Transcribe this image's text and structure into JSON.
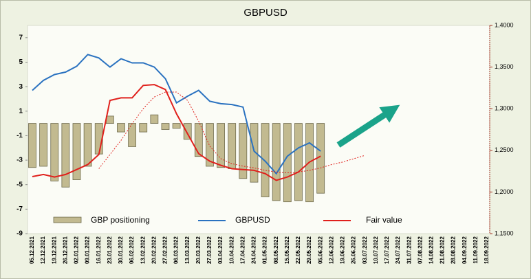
{
  "chart_data": {
    "type": "combo",
    "title": "GBPUSD",
    "categories": [
      "05.12.2021",
      "12.12.2021",
      "19.12.2021",
      "26.12.2021",
      "02.01.2022",
      "09.01.2022",
      "16.01.2022",
      "23.01.2022",
      "30.01.2022",
      "06.02.2022",
      "13.02.2022",
      "20.02.2022",
      "27.02.2022",
      "06.03.2022",
      "13.03.2022",
      "20.03.2022",
      "27.03.2022",
      "03.04.2022",
      "10.04.2022",
      "17.04.2022",
      "24.04.2022",
      "01.05.2022",
      "08.05.2022",
      "15.05.2022",
      "22.05.2022",
      "29.05.2022",
      "05.06.2022",
      "12.06.2022",
      "19.06.2022",
      "26.06.2022",
      "03.07.2022",
      "10.07.2022",
      "17.07.2022",
      "24.07.2022",
      "31.07.2022",
      "07.08.2022",
      "14.08.2022",
      "21.08.2022",
      "28.08.2022",
      "04.09.2022",
      "11.09.2022",
      "18.09.2022"
    ],
    "series": [
      {
        "name": "GBP positioning",
        "type": "bar",
        "color": "#c2ba90",
        "values": [
          -3.6,
          -3.5,
          -4.7,
          -5.2,
          -4.6,
          -3.5,
          -2.5,
          0.6,
          -0.7,
          -1.9,
          -0.7,
          0.7,
          -0.5,
          -0.4,
          -1.3,
          -2.7,
          -3.5,
          -3.6,
          -3.7,
          -4.5,
          -4.8,
          -6.0,
          -6.3,
          -6.4,
          -6.3,
          -6.4,
          -5.7,
          null,
          null,
          null,
          null,
          null,
          null,
          null,
          null,
          null,
          null,
          null,
          null,
          null,
          null,
          null
        ]
      },
      {
        "name": "GBPUSD",
        "type": "line",
        "axis": "y2",
        "color": "#2a72c0",
        "values": [
          1.322,
          1.334,
          1.341,
          1.344,
          1.351,
          1.365,
          1.361,
          1.35,
          1.36,
          1.355,
          1.355,
          1.35,
          1.336,
          1.307,
          1.315,
          1.322,
          1.309,
          1.306,
          1.305,
          1.302,
          1.249,
          1.237,
          1.222,
          1.243,
          1.253,
          1.259,
          1.249,
          null,
          null,
          null,
          null,
          null,
          null,
          null,
          null,
          null,
          null,
          null,
          null,
          null,
          null,
          null
        ]
      },
      {
        "name": "Fair value",
        "type": "line",
        "axis": "y2",
        "color": "#e0201c",
        "values": [
          1.2185,
          1.221,
          1.218,
          1.221,
          1.227,
          1.233,
          1.245,
          1.31,
          1.313,
          1.313,
          1.328,
          1.329,
          1.323,
          1.294,
          1.27,
          1.246,
          1.237,
          1.232,
          1.228,
          1.227,
          1.226,
          1.222,
          1.214,
          1.218,
          1.224,
          1.236,
          1.243,
          null,
          null,
          null,
          null,
          null,
          null,
          null,
          null,
          null,
          null,
          null,
          null,
          null,
          null,
          null
        ]
      },
      {
        "type": "line",
        "axis": "y2",
        "color": "#e0201c",
        "dash": true,
        "values": [
          null,
          null,
          null,
          null,
          null,
          null,
          1.228,
          1.245,
          1.262,
          1.282,
          1.3,
          1.314,
          1.32,
          1.32,
          1.31,
          1.285,
          1.255,
          1.24,
          1.234,
          1.231,
          1.229,
          1.226,
          1.224,
          1.223,
          1.224,
          1.226,
          1.229,
          1.233,
          1.236,
          1.24,
          1.244,
          null,
          null,
          null,
          null,
          null,
          null,
          null,
          null,
          null,
          null,
          null
        ]
      }
    ],
    "ylim": [
      -9,
      8
    ],
    "yticks": [
      7,
      5,
      3,
      1,
      -1,
      -3,
      -5,
      -7,
      -9
    ],
    "y2lim": [
      1.15,
      1.4
    ],
    "y2ticks": [
      {
        "value": 1.4,
        "label": "1,4000"
      },
      {
        "value": 1.35,
        "label": "1,3500"
      },
      {
        "value": 1.3,
        "label": "1,3000"
      },
      {
        "value": 1.25,
        "label": "1,2500"
      },
      {
        "value": 1.2,
        "label": "1,2000"
      },
      {
        "value": 1.15,
        "label": "1,1500"
      }
    ]
  }
}
